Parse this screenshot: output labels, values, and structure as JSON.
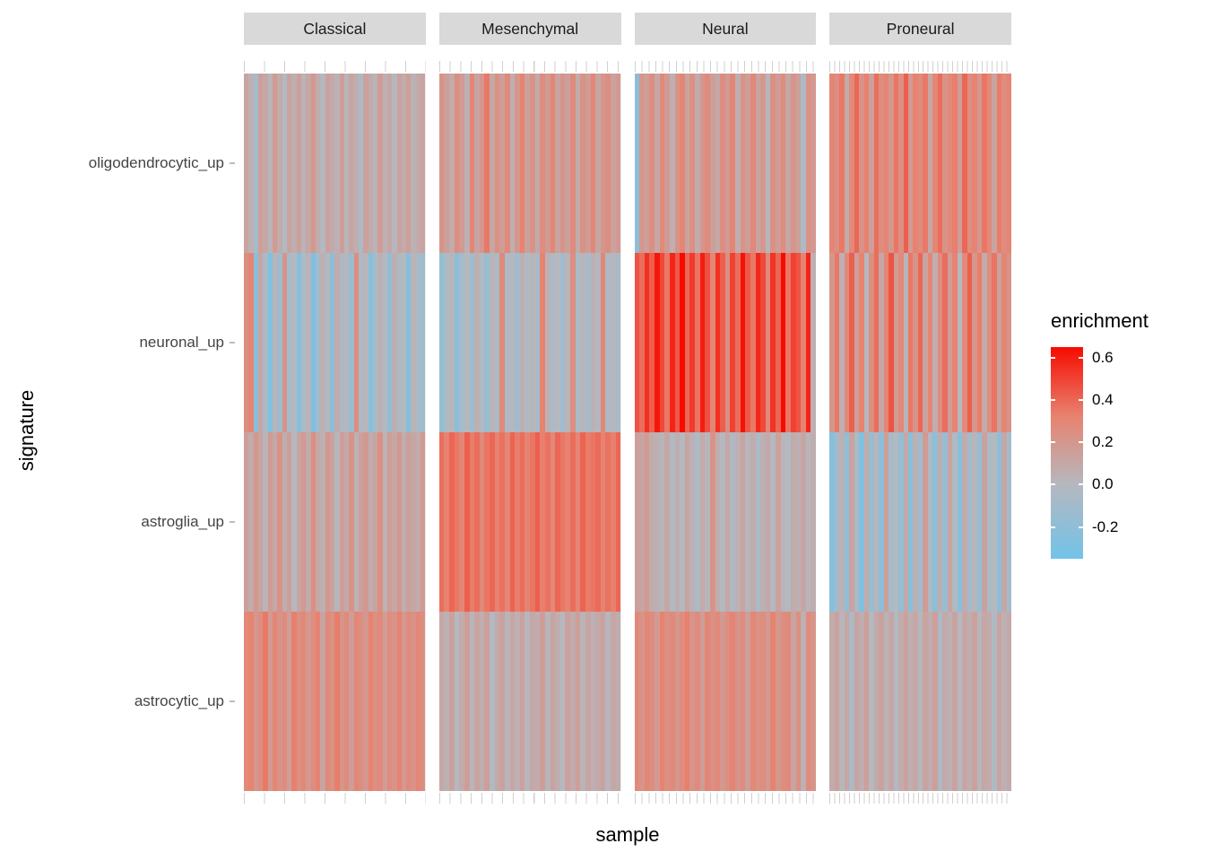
{
  "figure": {
    "x_title": "sample",
    "y_title": "signature"
  },
  "legend": {
    "title": "enrichment",
    "tick_labels": [
      "0.6",
      "0.4",
      "0.2",
      "0.0",
      "-0.2"
    ],
    "tick_values": [
      0.6,
      0.4,
      0.2,
      0.0,
      -0.2
    ]
  },
  "colors": {
    "low": "#72C3E9",
    "mid": "#B5B8BF",
    "salmon": "#E8826F",
    "high": "#F60B00",
    "strip_bg": "#D9D9D9",
    "panel_bg": "#EBEBEB",
    "tick_line": "#CFCFCF"
  },
  "chart_data": {
    "type": "heatmap",
    "title": "",
    "xlabel": "sample",
    "ylabel": "signature",
    "legend_title": "enrichment",
    "facets": [
      "Classical",
      "Mesenchymal",
      "Neural",
      "Proneural"
    ],
    "rows": [
      "oligodendrocytic_up",
      "neuronal_up",
      "astroglia_up",
      "astrocytic_up"
    ],
    "color_scale": {
      "min": -0.35,
      "mid": 0,
      "max": 0.65
    },
    "values": {
      "Classical": {
        "oligodendrocytic_up": [
          0.12,
          0.05,
          -0.08,
          0.15,
          0.1,
          0.02,
          0.18,
          0.08,
          -0.02,
          0.12,
          0.06,
          0.15,
          0.03,
          0.1,
          0.2,
          0.07,
          0.0,
          0.13,
          0.09,
          0.04,
          0.16,
          0.02,
          0.11,
          0.06,
          -0.05,
          0.14,
          0.08,
          0.03,
          0.17,
          0.05,
          0.1,
          0.01,
          0.13,
          0.07,
          0.15,
          0.04,
          0.09,
          0.12
        ],
        "neuronal_up": [
          0.25,
          0.3,
          -0.22,
          0.1,
          -0.05,
          -0.28,
          0.02,
          -0.12,
          0.22,
          -0.08,
          0.0,
          -0.25,
          -0.05,
          0.03,
          -0.3,
          -0.1,
          0.05,
          -0.02,
          -0.22,
          0.08,
          -0.06,
          0.01,
          -0.15,
          0.26,
          -0.04,
          0.02,
          -0.25,
          -0.08,
          0.04,
          -0.01,
          -0.2,
          0.06,
          -0.03,
          0.0,
          -0.26,
          0.03,
          -0.07,
          -0.12
        ],
        "astroglia_up": [
          0.15,
          0.08,
          0.2,
          0.12,
          0.03,
          0.18,
          0.1,
          0.22,
          0.06,
          0.15,
          0.0,
          0.12,
          0.18,
          0.08,
          0.25,
          0.1,
          0.05,
          0.2,
          0.13,
          0.02,
          0.16,
          0.09,
          0.22,
          0.04,
          0.14,
          0.19,
          0.07,
          0.12,
          0.24,
          0.03,
          0.17,
          0.1,
          0.2,
          0.06,
          0.15,
          0.11,
          0.08,
          0.18
        ],
        "astrocytic_up": [
          0.28,
          0.32,
          0.2,
          0.25,
          0.35,
          0.18,
          0.3,
          0.22,
          0.27,
          0.15,
          0.33,
          0.24,
          0.29,
          0.19,
          0.26,
          0.31,
          0.12,
          0.28,
          0.23,
          0.34,
          0.21,
          0.27,
          0.16,
          0.3,
          0.25,
          0.2,
          0.32,
          0.24,
          0.28,
          0.17,
          0.26,
          0.22,
          0.31,
          0.19,
          0.27,
          0.23,
          0.29,
          0.25
        ]
      },
      "Mesenchymal": {
        "oligodendrocytic_up": [
          0.22,
          0.15,
          0.08,
          0.25,
          0.18,
          0.05,
          0.3,
          0.12,
          0.2,
          0.35,
          0.1,
          0.24,
          0.16,
          0.28,
          0.06,
          0.2,
          0.32,
          0.14,
          0.22,
          0.09,
          0.26,
          0.18,
          0.3,
          0.12,
          0.21,
          0.15,
          0.27,
          0.08,
          0.23,
          0.17,
          0.29,
          0.11,
          0.2,
          0.25,
          0.14,
          0.19
        ],
        "neuronal_up": [
          -0.18,
          -0.05,
          0.02,
          -0.22,
          -0.08,
          0.0,
          -0.12,
          0.05,
          -0.02,
          -0.15,
          0.03,
          -0.06,
          0.28,
          -0.04,
          0.01,
          -0.1,
          0.06,
          -0.03,
          0.02,
          -0.08,
          0.32,
          0.04,
          -0.05,
          0.0,
          -0.12,
          0.03,
          0.25,
          -0.06,
          0.02,
          -0.09,
          0.05,
          -0.01,
          0.3,
          -0.04,
          0.01,
          -0.07
        ],
        "astroglia_up": [
          0.38,
          0.32,
          0.4,
          0.35,
          0.3,
          0.42,
          0.34,
          0.38,
          0.28,
          0.36,
          0.4,
          0.32,
          0.37,
          0.3,
          0.41,
          0.34,
          0.38,
          0.31,
          0.36,
          0.42,
          0.33,
          0.37,
          0.29,
          0.4,
          0.35,
          0.32,
          0.38,
          0.3,
          0.41,
          0.34,
          0.36,
          0.39,
          0.31,
          0.37,
          0.33,
          0.4
        ],
        "astrocytic_up": [
          0.1,
          0.04,
          0.14,
          0.0,
          0.08,
          0.16,
          0.02,
          0.12,
          0.06,
          0.15,
          -0.02,
          0.09,
          0.13,
          0.03,
          0.11,
          0.05,
          0.14,
          0.01,
          0.1,
          0.07,
          0.16,
          0.02,
          0.12,
          0.06,
          0.0,
          0.13,
          0.08,
          0.15,
          0.03,
          0.11,
          0.05,
          0.09,
          0.14,
          0.01,
          0.1,
          0.07
        ]
      },
      "Neural": {
        "oligodendrocytic_up": [
          -0.22,
          0.2,
          0.15,
          0.25,
          0.1,
          0.28,
          0.18,
          0.05,
          0.22,
          0.3,
          0.12,
          0.24,
          0.08,
          0.2,
          0.27,
          0.15,
          0.1,
          0.25,
          0.18,
          0.3,
          0.06,
          0.22,
          0.16,
          0.28,
          0.12,
          0.2,
          0.02,
          0.24,
          0.17,
          0.26,
          0.1,
          0.21,
          0.15,
          -0.05,
          0.23,
          0.19
        ],
        "neuronal_up": [
          0.45,
          0.38,
          0.55,
          0.42,
          0.62,
          0.48,
          0.35,
          0.58,
          0.44,
          0.65,
          0.4,
          0.52,
          0.36,
          0.6,
          0.46,
          0.3,
          0.55,
          0.42,
          0.25,
          0.5,
          0.38,
          0.63,
          0.44,
          0.35,
          0.57,
          0.48,
          0.28,
          0.54,
          0.4,
          0.65,
          0.36,
          0.5,
          0.45,
          0.32,
          0.58,
          0.05
        ],
        "astroglia_up": [
          0.15,
          0.12,
          0.18,
          0.08,
          0.05,
          0.02,
          0.1,
          -0.02,
          0.06,
          0.0,
          0.12,
          0.04,
          -0.05,
          0.08,
          0.02,
          0.22,
          0.06,
          0.0,
          0.1,
          -0.03,
          0.05,
          0.12,
          0.01,
          0.07,
          -0.06,
          0.04,
          0.09,
          0.0,
          0.14,
          0.03,
          -0.02,
          0.08,
          0.05,
          0.11,
          0.02,
          0.06
        ],
        "astrocytic_up": [
          0.28,
          0.22,
          0.3,
          0.25,
          0.18,
          0.32,
          0.24,
          0.28,
          0.2,
          0.26,
          0.33,
          0.21,
          0.27,
          0.16,
          0.3,
          0.24,
          0.28,
          0.19,
          0.25,
          0.31,
          0.22,
          0.27,
          0.15,
          0.29,
          0.23,
          0.26,
          0.18,
          0.32,
          0.2,
          0.25,
          0.28,
          0.12,
          0.24,
          0.05,
          0.27,
          0.21
        ]
      },
      "Proneural": {
        "oligodendrocytic_up": [
          0.3,
          0.25,
          0.35,
          0.08,
          0.28,
          0.4,
          0.22,
          0.32,
          0.15,
          0.38,
          0.26,
          0.3,
          0.2,
          0.36,
          0.24,
          0.42,
          0.18,
          0.32,
          0.27,
          0.35,
          0.1,
          0.3,
          0.38,
          0.22,
          0.28,
          0.33,
          0.16,
          0.4,
          0.25,
          0.31,
          0.2,
          0.36,
          0.28,
          0.12,
          0.34,
          0.26,
          0.3
        ],
        "neuronal_up": [
          0.2,
          0.35,
          0.05,
          0.28,
          0.42,
          0.15,
          0.32,
          0.0,
          0.25,
          0.38,
          0.1,
          0.3,
          0.45,
          0.18,
          0.28,
          0.02,
          0.35,
          0.22,
          0.4,
          0.12,
          0.3,
          0.06,
          0.26,
          0.38,
          0.16,
          0.32,
          0.0,
          0.28,
          0.42,
          0.2,
          0.34,
          0.08,
          0.25,
          0.36,
          0.14,
          0.3,
          0.22
        ],
        "astroglia_up": [
          -0.25,
          -0.1,
          0.05,
          -0.2,
          0.12,
          -0.05,
          -0.28,
          0.08,
          -0.15,
          0.02,
          -0.22,
          0.15,
          -0.08,
          0.0,
          -0.18,
          0.1,
          -0.25,
          0.04,
          -0.12,
          0.18,
          -0.05,
          -0.2,
          0.06,
          -0.15,
          0.12,
          -0.02,
          -0.24,
          0.08,
          -0.1,
          0.02,
          -0.18,
          0.14,
          -0.06,
          0.0,
          -0.22,
          0.1,
          -0.08
        ],
        "astrocytic_up": [
          0.08,
          0.14,
          0.02,
          0.1,
          -0.04,
          0.12,
          0.06,
          0.15,
          0.0,
          0.09,
          0.13,
          0.03,
          0.11,
          -0.02,
          0.08,
          0.14,
          0.05,
          0.1,
          0.01,
          0.12,
          0.07,
          0.15,
          -0.05,
          0.09,
          0.04,
          0.13,
          0.0,
          0.11,
          0.06,
          0.14,
          0.02,
          0.1,
          0.08,
          -0.03,
          0.12,
          0.05,
          0.09
        ]
      }
    }
  }
}
